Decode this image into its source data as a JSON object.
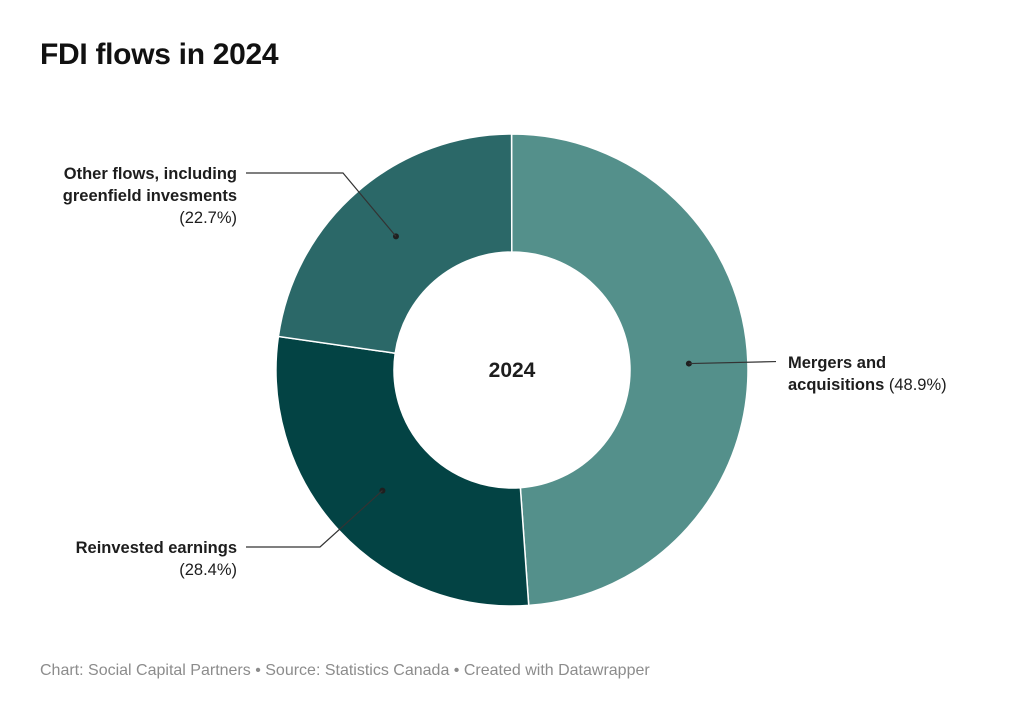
{
  "title": "FDI flows in 2024",
  "footer": "Chart: Social Capital Partners • Source: Statistics Canada • Created with Datawrapper",
  "chart_data": {
    "type": "pie",
    "center_label": "2024",
    "slices": [
      {
        "name": "Mergers and acquisitions",
        "value": 48.9,
        "pct_label": "(48.9%)",
        "label_lines": [
          "Mergers and",
          "acquisitions"
        ],
        "color": "#54908b"
      },
      {
        "name": "Reinvested earnings",
        "value": 28.4,
        "pct_label": "(28.4%)",
        "label_lines": [
          "Reinvested earnings"
        ],
        "color": "#034344"
      },
      {
        "name": "Other flows, including greenfield invesments",
        "value": 22.7,
        "pct_label": "(22.7%)",
        "label_lines": [
          "Other flows, including",
          "greenfield invesments"
        ],
        "color": "#2b6868"
      }
    ]
  }
}
